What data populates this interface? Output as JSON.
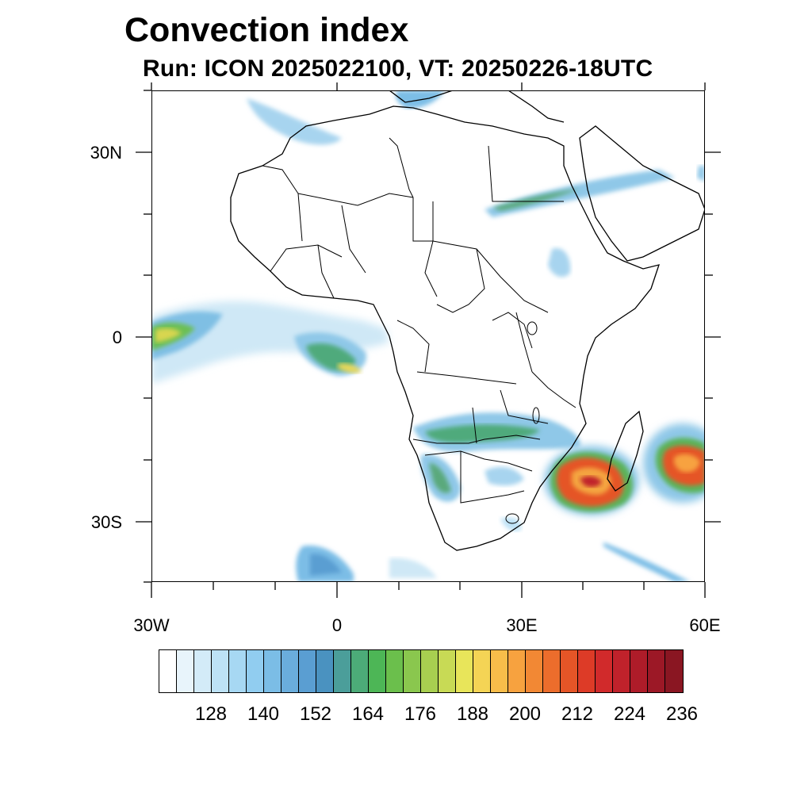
{
  "title": "Convection index",
  "subtitle": "Run: ICON 2025022100,  VT: 20250226-18UTC",
  "axes": {
    "lat_labels": [
      "30N",
      "0",
      "30S"
    ],
    "lon_labels": [
      "30W",
      "0",
      "30E",
      "60E"
    ]
  },
  "colorbar": {
    "labels": [
      "128",
      "140",
      "152",
      "164",
      "176",
      "188",
      "200",
      "212",
      "224",
      "236"
    ],
    "colors": [
      "#ffffff",
      "#e8f4fb",
      "#d3ebf8",
      "#bde2f6",
      "#a7d8f3",
      "#91cdf0",
      "#7bbde6",
      "#6aaddc",
      "#5a9ed2",
      "#4a92c0",
      "#4b9e9a",
      "#4cab78",
      "#4db656",
      "#6bbf4c",
      "#8ac74e",
      "#a8cf50",
      "#c8da55",
      "#e8e55a",
      "#f4d455",
      "#f8bd4a",
      "#f7a23f",
      "#f28834",
      "#ec6d2c",
      "#e55527",
      "#dd3b27",
      "#d12a2b",
      "#c0222b",
      "#ae1c29",
      "#9c1826",
      "#8a1622"
    ]
  },
  "map": {
    "extent": "30W-60E, 40S-40N",
    "features": [
      "Tropical cyclone near Madagascar",
      "Tropical cyclone east of Madagascar",
      "Equatorial Atlantic convection band"
    ]
  }
}
